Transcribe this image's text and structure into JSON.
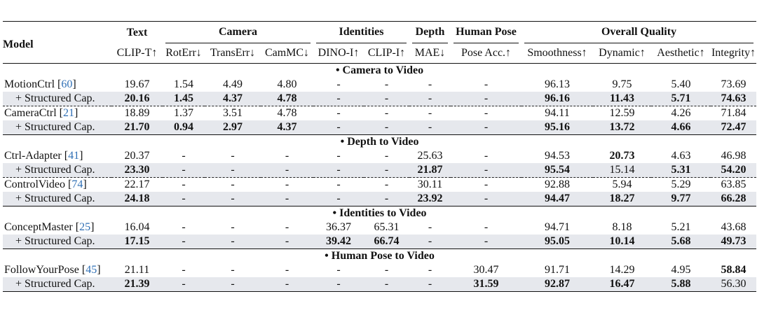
{
  "header": {
    "model": "Model",
    "groups": {
      "text": "Text",
      "camera": "Camera",
      "identities": "Identities",
      "depth": "Depth",
      "human_pose": "Human Pose",
      "overall": "Overall Quality"
    },
    "metrics": [
      "CLIP-T↑",
      "RotErr↓",
      "TransErr↓",
      "CamMC↓",
      "DINO-I↑",
      "CLIP-I↑",
      "MAE↓",
      "Pose Acc.↑",
      "Smoothness↑",
      "Dynamic↑",
      "Aesthetic↑",
      "Integrity↑"
    ]
  },
  "sections": [
    {
      "title": "• Camera to Video",
      "rows": [
        {
          "name": "MotionCtrl [",
          "cite": "60",
          "close": "]",
          "shaded": false,
          "dashed": false,
          "values": [
            "19.67",
            "1.54",
            "4.49",
            "4.80",
            "-",
            "-",
            "-",
            "-",
            "96.13",
            "9.75",
            "5.40",
            "73.69"
          ],
          "bold": [
            false,
            false,
            false,
            false,
            false,
            false,
            false,
            false,
            false,
            false,
            false,
            false
          ]
        },
        {
          "name": "+ Structured Cap.",
          "cite": "",
          "close": "",
          "shaded": true,
          "dashed": true,
          "values": [
            "20.16",
            "1.45",
            "4.37",
            "4.78",
            "-",
            "-",
            "-",
            "-",
            "96.16",
            "11.43",
            "5.71",
            "74.63"
          ],
          "bold": [
            true,
            true,
            true,
            true,
            false,
            false,
            false,
            false,
            true,
            true,
            true,
            true
          ]
        },
        {
          "name": "CameraCtrl [",
          "cite": "21",
          "close": "]",
          "shaded": false,
          "dashed": false,
          "values": [
            "18.89",
            "1.37",
            "3.51",
            "4.78",
            "-",
            "-",
            "-",
            "-",
            "94.11",
            "12.59",
            "4.26",
            "71.84"
          ],
          "bold": [
            false,
            false,
            false,
            false,
            false,
            false,
            false,
            false,
            false,
            false,
            false,
            false
          ]
        },
        {
          "name": "+ Structured Cap.",
          "cite": "",
          "close": "",
          "shaded": true,
          "dashed": false,
          "values": [
            "21.70",
            "0.94",
            "2.97",
            "4.37",
            "-",
            "-",
            "-",
            "-",
            "95.16",
            "13.72",
            "4.66",
            "72.47"
          ],
          "bold": [
            true,
            true,
            true,
            true,
            false,
            false,
            false,
            false,
            true,
            true,
            true,
            true
          ]
        }
      ]
    },
    {
      "title": "• Depth to Video",
      "rows": [
        {
          "name": "Ctrl-Adapter [",
          "cite": "41",
          "close": "]",
          "shaded": false,
          "dashed": false,
          "values": [
            "20.37",
            "-",
            "-",
            "-",
            "-",
            "-",
            "25.63",
            "-",
            "94.53",
            "20.73",
            "4.63",
            "46.98"
          ],
          "bold": [
            false,
            false,
            false,
            false,
            false,
            false,
            false,
            false,
            false,
            true,
            false,
            false
          ]
        },
        {
          "name": "+ Structured Cap.",
          "cite": "",
          "close": "",
          "shaded": true,
          "dashed": true,
          "values": [
            "23.30",
            "-",
            "-",
            "-",
            "-",
            "-",
            "21.87",
            "-",
            "95.54",
            "15.14",
            "5.31",
            "54.20"
          ],
          "bold": [
            true,
            false,
            false,
            false,
            false,
            false,
            true,
            false,
            true,
            false,
            true,
            true
          ]
        },
        {
          "name": "ControlVideo [",
          "cite": "74",
          "close": "]",
          "shaded": false,
          "dashed": false,
          "values": [
            "22.17",
            "-",
            "-",
            "-",
            "-",
            "-",
            "30.11",
            "-",
            "92.88",
            "5.94",
            "5.29",
            "63.85"
          ],
          "bold": [
            false,
            false,
            false,
            false,
            false,
            false,
            false,
            false,
            false,
            false,
            false,
            false
          ]
        },
        {
          "name": "+ Structured Cap.",
          "cite": "",
          "close": "",
          "shaded": true,
          "dashed": false,
          "values": [
            "24.18",
            "-",
            "-",
            "-",
            "-",
            "-",
            "23.92",
            "-",
            "94.47",
            "18.27",
            "9.77",
            "66.28"
          ],
          "bold": [
            true,
            false,
            false,
            false,
            false,
            false,
            true,
            false,
            true,
            true,
            true,
            true
          ]
        }
      ]
    },
    {
      "title": "• Identities to Video",
      "rows": [
        {
          "name": "ConceptMaster [",
          "cite": "25",
          "close": "]",
          "shaded": false,
          "dashed": false,
          "values": [
            "16.04",
            "-",
            "-",
            "-",
            "36.37",
            "65.31",
            "-",
            "-",
            "94.71",
            "8.18",
            "5.21",
            "43.68"
          ],
          "bold": [
            false,
            false,
            false,
            false,
            false,
            false,
            false,
            false,
            false,
            false,
            false,
            false
          ]
        },
        {
          "name": "+ Structured Cap.",
          "cite": "",
          "close": "",
          "shaded": true,
          "dashed": false,
          "values": [
            "17.15",
            "-",
            "-",
            "-",
            "39.42",
            "66.74",
            "-",
            "-",
            "95.05",
            "10.14",
            "5.68",
            "49.73"
          ],
          "bold": [
            true,
            false,
            false,
            false,
            true,
            true,
            false,
            false,
            true,
            true,
            true,
            true
          ]
        }
      ]
    },
    {
      "title": "• Human Pose to Video",
      "rows": [
        {
          "name": "FollowYourPose [",
          "cite": "45",
          "close": "]",
          "shaded": false,
          "dashed": false,
          "values": [
            "21.11",
            "-",
            "-",
            "-",
            "-",
            "-",
            "-",
            "30.47",
            "91.71",
            "14.29",
            "4.95",
            "58.84"
          ],
          "bold": [
            false,
            false,
            false,
            false,
            false,
            false,
            false,
            false,
            false,
            false,
            false,
            true
          ]
        },
        {
          "name": "+ Structured Cap.",
          "cite": "",
          "close": "",
          "shaded": true,
          "dashed": false,
          "values": [
            "21.39",
            "-",
            "-",
            "-",
            "-",
            "-",
            "-",
            "31.59",
            "92.87",
            "16.47",
            "5.88",
            "56.30"
          ],
          "bold": [
            true,
            false,
            false,
            false,
            false,
            false,
            false,
            true,
            true,
            true,
            true,
            false
          ]
        }
      ]
    }
  ]
}
